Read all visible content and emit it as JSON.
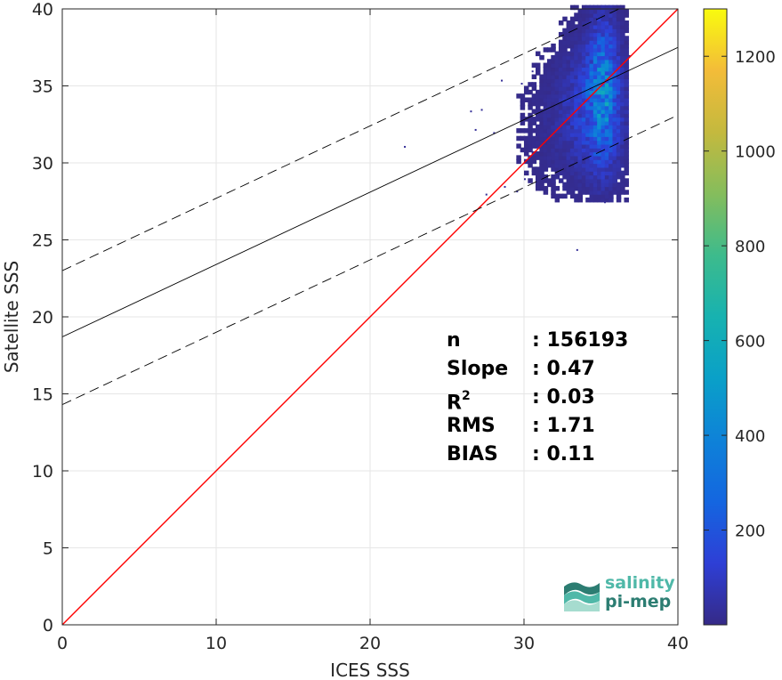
{
  "chart_data": {
    "type": "heatmap",
    "title": "",
    "xlabel": "ICES SSS",
    "ylabel": "Satellite SSS",
    "xlim": [
      0,
      40
    ],
    "ylim": [
      0,
      40
    ],
    "xticks": [
      0,
      10,
      20,
      30,
      40
    ],
    "yticks": [
      0,
      5,
      10,
      15,
      20,
      25,
      30,
      35,
      40
    ],
    "grid": true,
    "colorbar": {
      "range": [
        0,
        1300
      ],
      "ticks": [
        200,
        400,
        600,
        800,
        1000,
        1200
      ],
      "colormap": "parula"
    },
    "density_clusters": [
      {
        "x_center": 35.0,
        "y_center": 34.5,
        "x_spread": 0.6,
        "y_spread": 2.8,
        "peak": 420
      },
      {
        "x_center": 34.3,
        "y_center": 33.5,
        "x_spread": 1.3,
        "y_spread": 2.5,
        "peak": 150
      },
      {
        "x_center": 33.0,
        "y_center": 32.0,
        "x_spread": 2.0,
        "y_spread": 2.5,
        "peak": 25
      }
    ],
    "scatter_outliers": [
      {
        "x": 26.5,
        "y": 33.4
      },
      {
        "x": 27.2,
        "y": 33.5
      },
      {
        "x": 26.8,
        "y": 32.2
      },
      {
        "x": 22.2,
        "y": 31.1
      },
      {
        "x": 28.5,
        "y": 35.4
      },
      {
        "x": 28.0,
        "y": 32.0
      },
      {
        "x": 29.8,
        "y": 35.2
      },
      {
        "x": 30.2,
        "y": 34.6
      },
      {
        "x": 30.5,
        "y": 36.0
      },
      {
        "x": 31.0,
        "y": 36.9
      },
      {
        "x": 30.0,
        "y": 29.0
      },
      {
        "x": 29.5,
        "y": 28.2
      },
      {
        "x": 33.4,
        "y": 24.4
      },
      {
        "x": 35.2,
        "y": 27.5
      },
      {
        "x": 36.3,
        "y": 36.5
      },
      {
        "x": 36.8,
        "y": 37.0
      },
      {
        "x": 27.5,
        "y": 28.0
      },
      {
        "x": 28.7,
        "y": 28.5
      }
    ],
    "lines": [
      {
        "name": "identity",
        "color": "#ff0000",
        "style": "solid",
        "x": [
          0,
          40
        ],
        "y": [
          0,
          40
        ]
      },
      {
        "name": "fit",
        "color": "#000000",
        "style": "solid",
        "x": [
          0,
          40
        ],
        "y": [
          18.7,
          37.5
        ]
      },
      {
        "name": "fit-upper",
        "color": "#000000",
        "style": "dashed",
        "x": [
          0,
          40
        ],
        "y": [
          23.0,
          41.8
        ]
      },
      {
        "name": "fit-lower",
        "color": "#000000",
        "style": "dashed",
        "x": [
          0,
          40
        ],
        "y": [
          14.3,
          33.1
        ]
      }
    ],
    "stats": [
      {
        "key": "n",
        "sup": "",
        "value": ": 156193"
      },
      {
        "key": "Slope",
        "sup": "",
        "value": ": 0.47"
      },
      {
        "key": "R",
        "sup": "2",
        "value": ": 0.03"
      },
      {
        "key": "RMS",
        "sup": "",
        "value": ": 1.71"
      },
      {
        "key": "BIAS",
        "sup": "",
        "value": ": 0.11"
      }
    ]
  },
  "logo": {
    "line1": "salinity",
    "line2": "pi-mep",
    "color1": "#4fb8a8",
    "color2": "#2c7d72"
  }
}
